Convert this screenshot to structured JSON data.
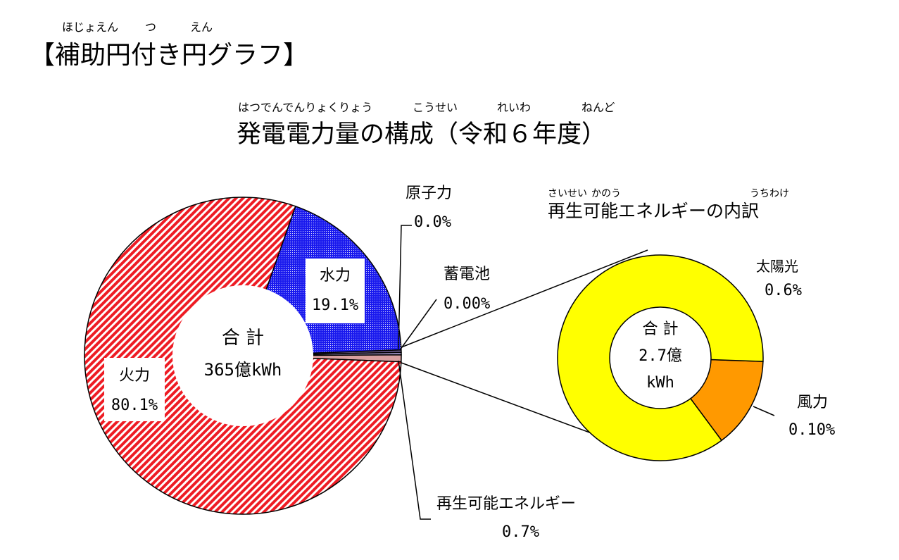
{
  "page_title": {
    "ruby": [
      "ほじょえん",
      "つ",
      "えん"
    ],
    "text": "【補助円付き円グラフ】"
  },
  "colors": {
    "thermal": "#ee1c24",
    "hydro": "#1a1aee",
    "nuclear": "#6b5a8c",
    "battery": "#9e90c0",
    "renewable": "#d9a0a0",
    "solar": "#ffff00",
    "wind": "#ff9900",
    "line": "#000000"
  },
  "chart_data": [
    {
      "type": "pie",
      "style": "donut",
      "title": "発電電力量の構成（令和６年度）",
      "title_ruby": [
        "はつでんでんりょくりょう",
        "こうせい",
        "れいわ",
        "ねんど"
      ],
      "center_label": [
        "合 計",
        "365億kWh"
      ],
      "total": 365,
      "unit": "億kWh",
      "slices": [
        {
          "name": "水力",
          "value": 19.1,
          "label": "19.1%"
        },
        {
          "name": "原子力",
          "value": 0.0,
          "label": "0.0%"
        },
        {
          "name": "蓄電池",
          "value": 0.0,
          "label": "0.00%"
        },
        {
          "name": "再生可能エネルギー",
          "value": 0.7,
          "label": "0.7%"
        },
        {
          "name": "火力",
          "value": 80.1,
          "label": "80.1%"
        }
      ]
    },
    {
      "type": "pie",
      "style": "donut",
      "title": "再生可能エネルギーの内訳",
      "title_ruby": [
        "さいせい",
        "かのう",
        "うちわけ"
      ],
      "center_label": [
        "合 計",
        "2.7億",
        "kWh"
      ],
      "total": 2.7,
      "unit": "億kWh",
      "slices": [
        {
          "name": "太陽光",
          "value": 0.6,
          "label": "0.6%"
        },
        {
          "name": "風力",
          "value": 0.1,
          "label": "0.10%"
        }
      ]
    }
  ]
}
